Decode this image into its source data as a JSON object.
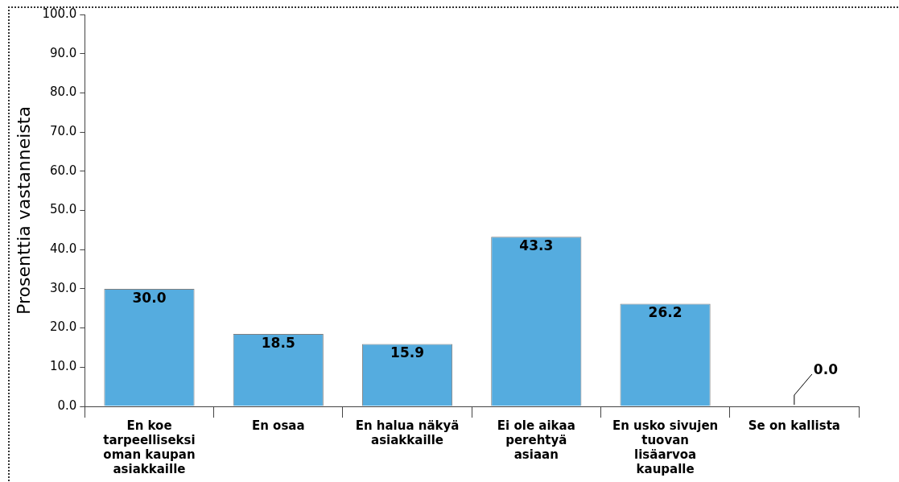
{
  "chart_data": {
    "type": "bar",
    "ylabel": "Prosenttia vastanneista",
    "categories": [
      "En koe tarpeelliseksi oman kaupan asiakkaille",
      "En osaa",
      "En halua näkyä asiakkaille",
      "Ei ole aikaa perehtyä asiaan",
      "En usko sivujen tuovan lisäarvoa kaupalle",
      "Se on kallista"
    ],
    "values": [
      30.0,
      18.5,
      15.9,
      43.3,
      26.2,
      0.0
    ],
    "value_labels": [
      "30.0",
      "18.5",
      "15.9",
      "43.3",
      "26.2",
      "0.0"
    ],
    "color": "#55acdf",
    "ylim": [
      0,
      100
    ],
    "yticks": [
      {
        "value": 0,
        "label": "0.0"
      },
      {
        "value": 10,
        "label": "10.0"
      },
      {
        "value": 20,
        "label": "20.0"
      },
      {
        "value": 30,
        "label": "30.0"
      },
      {
        "value": 40,
        "label": "40.0"
      },
      {
        "value": 50,
        "label": "50.0"
      },
      {
        "value": 60,
        "label": "60.0"
      },
      {
        "value": 70,
        "label": "70.0"
      },
      {
        "value": 80,
        "label": "80.0"
      },
      {
        "value": 90,
        "label": "90.0"
      },
      {
        "value": 100,
        "label": "100.0"
      }
    ],
    "grid": false,
    "legend": false
  }
}
